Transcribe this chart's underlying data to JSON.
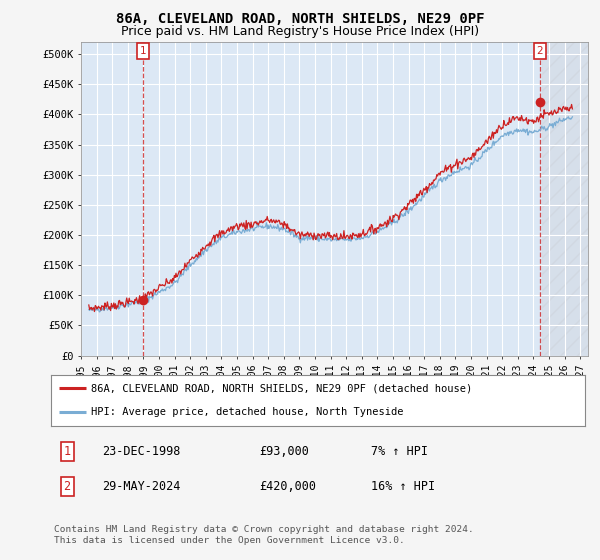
{
  "title": "86A, CLEVELAND ROAD, NORTH SHIELDS, NE29 0PF",
  "subtitle": "Price paid vs. HM Land Registry's House Price Index (HPI)",
  "xlim_left": 1995.0,
  "xlim_right": 2027.5,
  "ylim_bottom": 0,
  "ylim_top": 520000,
  "yticks": [
    0,
    50000,
    100000,
    150000,
    200000,
    250000,
    300000,
    350000,
    400000,
    450000,
    500000
  ],
  "ytick_labels": [
    "£0",
    "£50K",
    "£100K",
    "£150K",
    "£200K",
    "£250K",
    "£300K",
    "£350K",
    "£400K",
    "£450K",
    "£500K"
  ],
  "xtick_years": [
    1995,
    1996,
    1997,
    1998,
    1999,
    2000,
    2001,
    2002,
    2003,
    2004,
    2005,
    2006,
    2007,
    2008,
    2009,
    2010,
    2011,
    2012,
    2013,
    2014,
    2015,
    2016,
    2017,
    2018,
    2019,
    2020,
    2021,
    2022,
    2023,
    2024,
    2025,
    2026,
    2027
  ],
  "hpi_line_color": "#7aadd4",
  "price_line_color": "#cc2222",
  "marker_color": "#cc2222",
  "background_color": "#dce8f5",
  "grid_color": "#c8d8e8",
  "fig_background": "#f5f5f5",
  "sale1_year": 1998.97,
  "sale1_price": 93000,
  "sale2_year": 2024.42,
  "sale2_price": 420000,
  "legend_red_label": "86A, CLEVELAND ROAD, NORTH SHIELDS, NE29 0PF (detached house)",
  "legend_blue_label": "HPI: Average price, detached house, North Tyneside",
  "table_row1": [
    "1",
    "23-DEC-1998",
    "£93,000",
    "7% ↑ HPI"
  ],
  "table_row2": [
    "2",
    "29-MAY-2024",
    "£420,000",
    "16% ↑ HPI"
  ],
  "footnote": "Contains HM Land Registry data © Crown copyright and database right 2024.\nThis data is licensed under the Open Government Licence v3.0.",
  "title_fontsize": 10,
  "subtitle_fontsize": 9
}
